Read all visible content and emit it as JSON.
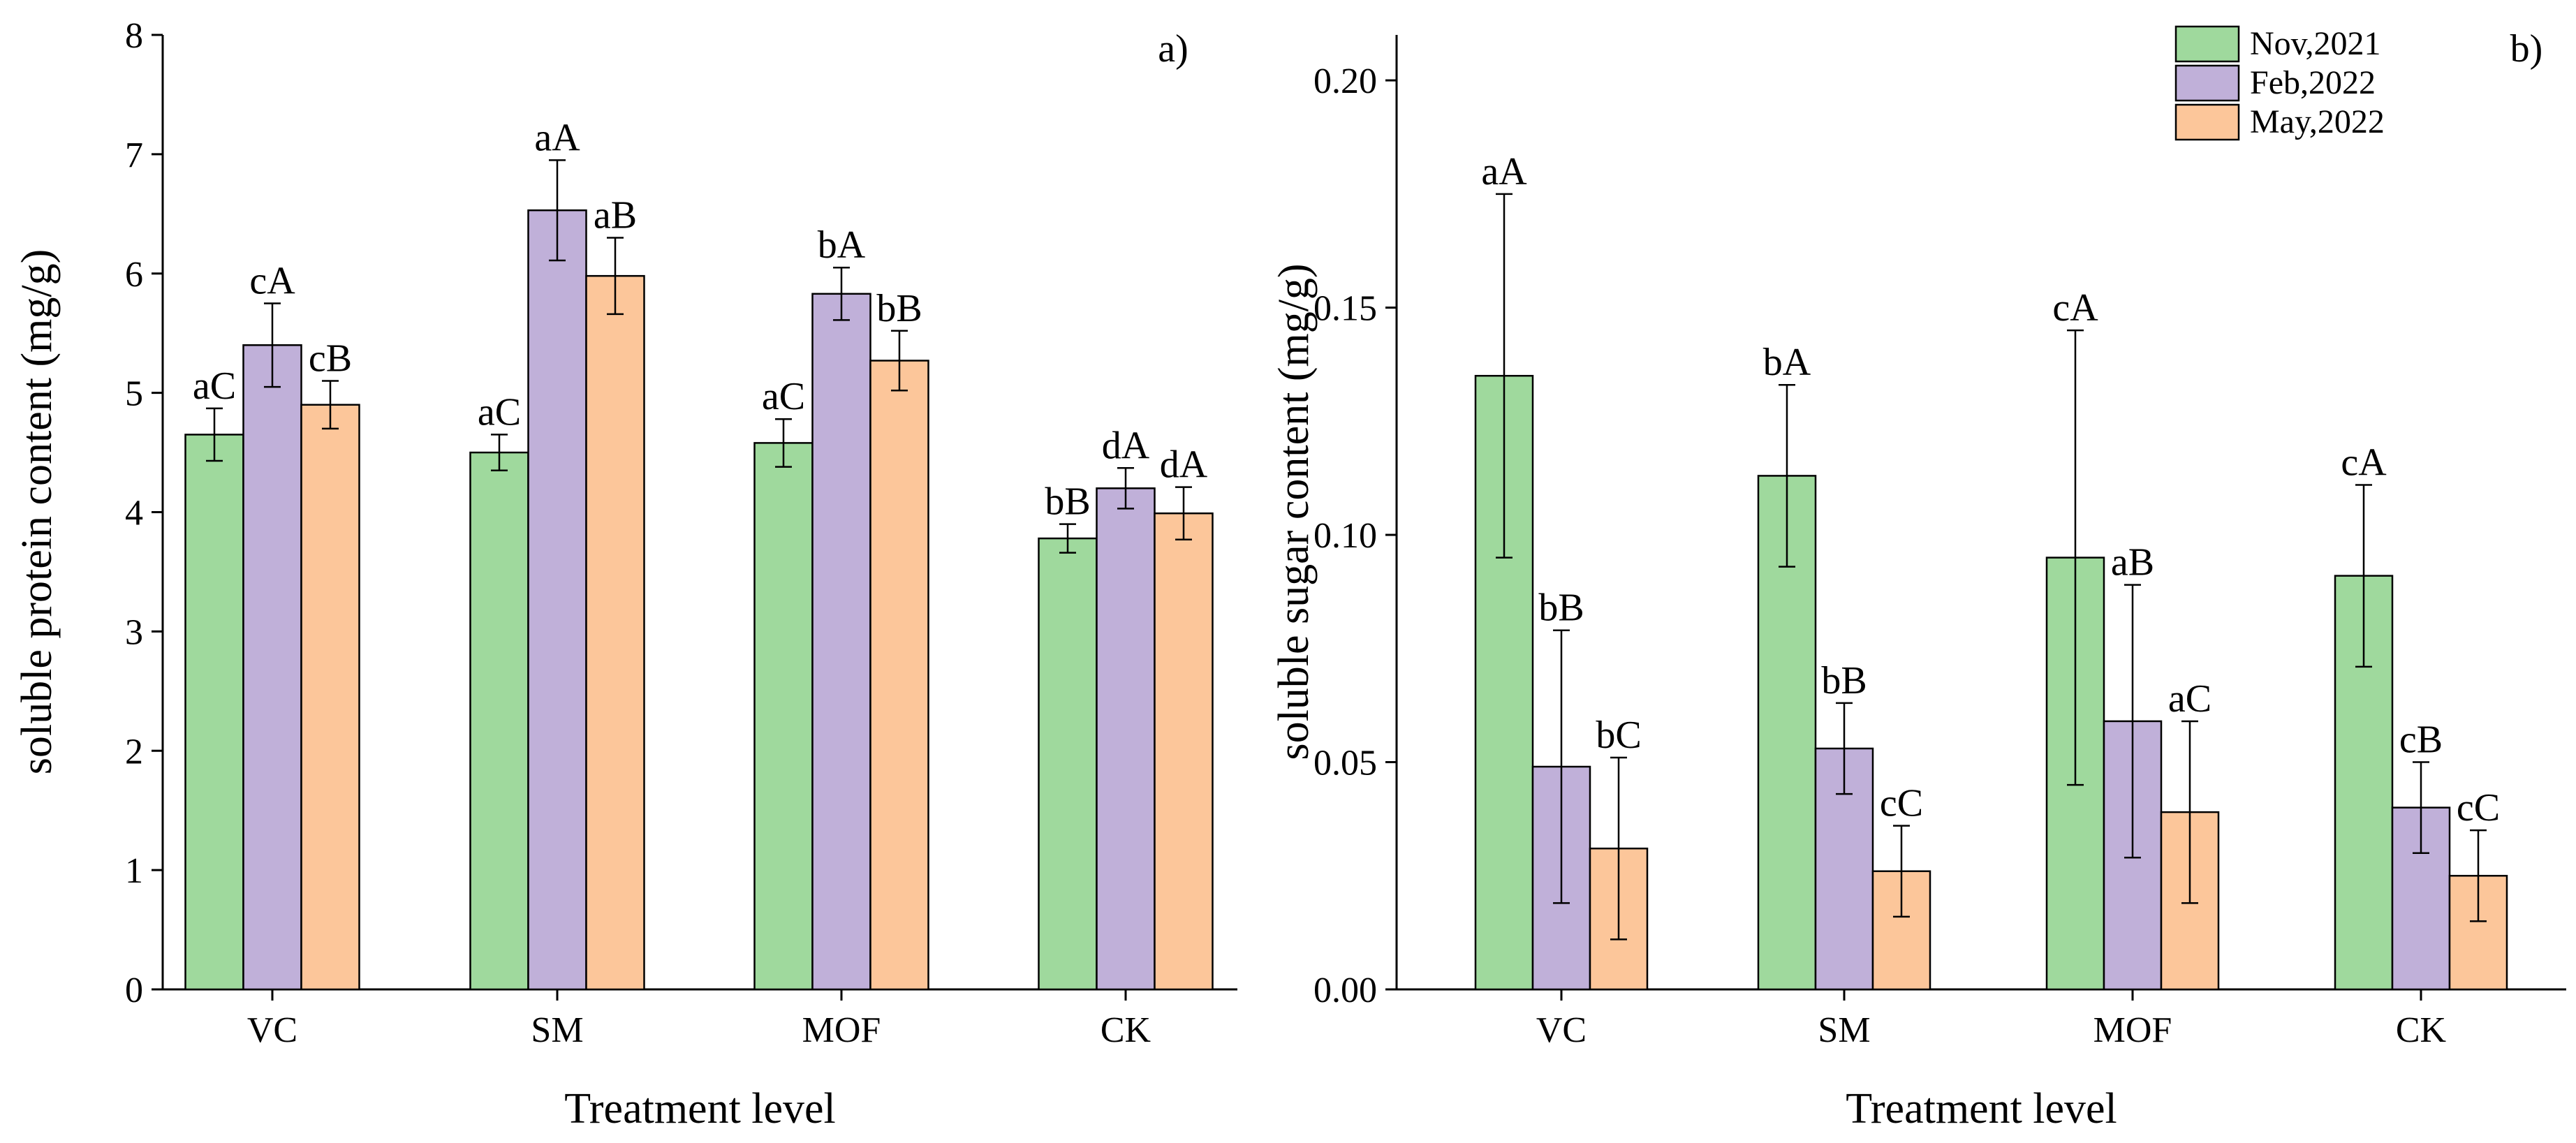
{
  "chart_data": [
    {
      "type": "bar",
      "panel_label": "a)",
      "categories": [
        "VC",
        "SM",
        "MOF",
        "CK"
      ],
      "xlabel": "Treatment level",
      "ylabel": "soluble protein content (mg/g)",
      "ylim": [
        0,
        8
      ],
      "yticks": [
        "0",
        "1",
        "2",
        "3",
        "4",
        "5",
        "6",
        "7",
        "8"
      ],
      "series": [
        {
          "name": "Nov,2021",
          "color": "#9fd99d",
          "values": [
            4.65,
            4.5,
            4.58,
            3.78
          ],
          "errors": [
            0.22,
            0.15,
            0.2,
            0.12
          ],
          "labels": [
            "aC",
            "aC",
            "aC",
            "bB"
          ]
        },
        {
          "name": "Feb,2022",
          "color": "#c0b0d9",
          "values": [
            5.4,
            6.53,
            5.83,
            4.2
          ],
          "errors": [
            0.35,
            0.42,
            0.22,
            0.17
          ],
          "labels": [
            "cA",
            "aA",
            "bA",
            "dA"
          ]
        },
        {
          "name": "May,2022",
          "color": "#fcc69a",
          "values": [
            4.9,
            5.98,
            5.27,
            3.99
          ],
          "errors": [
            0.2,
            0.32,
            0.25,
            0.22
          ],
          "labels": [
            "cB",
            "aB",
            "bB",
            "dA"
          ]
        }
      ]
    },
    {
      "type": "bar",
      "panel_label": "b)",
      "categories": [
        "VC",
        "SM",
        "MOF",
        "CK"
      ],
      "xlabel": "Treatment level",
      "ylabel": "soluble sugar content (mg/g)",
      "ylim": [
        0,
        0.21
      ],
      "yticks": [
        "0.00",
        "0.05",
        "0.10",
        "0.15",
        "0.20"
      ],
      "legend": {
        "position": "top-right",
        "entries": [
          "Nov,2021",
          "Feb,2022",
          "May,2022"
        ]
      },
      "series": [
        {
          "name": "Nov,2021",
          "color": "#9fd99d",
          "values": [
            0.135,
            0.113,
            0.095,
            0.091
          ],
          "errors": [
            0.04,
            0.02,
            0.05,
            0.02
          ],
          "labels": [
            "aA",
            "bA",
            "cA",
            "cA"
          ]
        },
        {
          "name": "Feb,2022",
          "color": "#c0b0d9",
          "values": [
            0.049,
            0.053,
            0.059,
            0.04
          ],
          "errors": [
            0.03,
            0.01,
            0.03,
            0.01
          ],
          "labels": [
            "bB",
            "bB",
            "aB",
            "cB"
          ]
        },
        {
          "name": "May,2022",
          "color": "#fcc69a",
          "values": [
            0.031,
            0.026,
            0.039,
            0.025
          ],
          "errors": [
            0.02,
            0.01,
            0.02,
            0.01
          ],
          "labels": [
            "bC",
            "cC",
            "aC",
            "cC"
          ]
        }
      ]
    }
  ]
}
